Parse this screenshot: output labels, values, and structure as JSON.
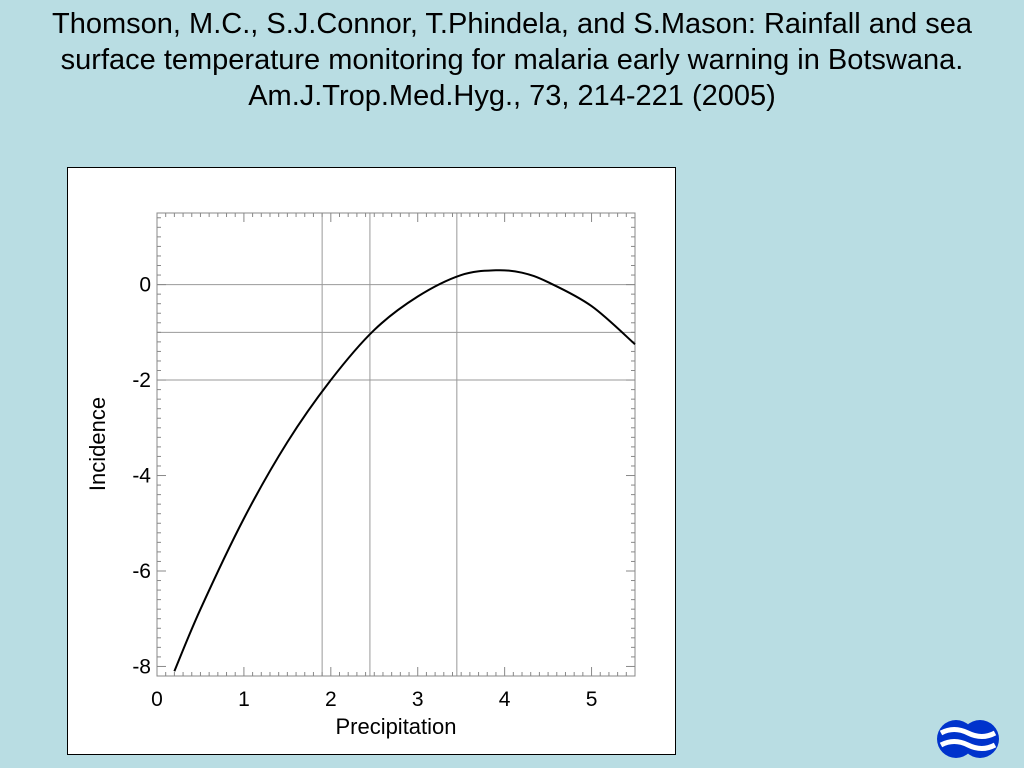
{
  "slide": {
    "title": "Thomson, M.C., S.J.Connor, T.Phindela, and S.Mason: Rainfall and sea surface temperature monitoring for malaria early warning in Botswana. Am.J.Trop.Med.Hyg., 73, 214-221 (2005)",
    "logo_icon": "ecmwf-logo-icon",
    "logo_color": "#0033cc"
  },
  "chart_data": {
    "type": "line",
    "title": "",
    "xlabel": "Precipitation",
    "ylabel": "Incidence",
    "xlim": [
      0,
      5.5
    ],
    "ylim": [
      -8.2,
      1.5
    ],
    "xticks": [
      0,
      1,
      2,
      3,
      4,
      5
    ],
    "yticks": [
      0,
      -2,
      -4,
      -6,
      -8
    ],
    "grid": {
      "vertical": [
        1.9,
        2.45,
        3.45
      ],
      "horizontal": [
        0,
        -1,
        -2
      ]
    },
    "line_color": "#000000",
    "series": [
      {
        "x": [
          0.2,
          0.5,
          1.0,
          1.5,
          2.0,
          2.5,
          3.0,
          3.5,
          3.9,
          4.2,
          4.5,
          5.0,
          5.5
        ],
        "y": [
          -8.1,
          -6.8,
          -4.9,
          -3.3,
          -2.0,
          -0.95,
          -0.25,
          0.2,
          0.3,
          0.25,
          0.05,
          -0.45,
          -1.25
        ]
      }
    ]
  }
}
